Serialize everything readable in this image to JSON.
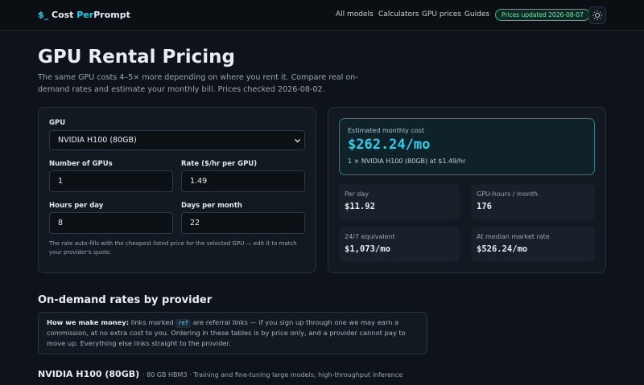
{
  "nav": {
    "logo": {
      "prefix": "$_",
      "word1": "Cost",
      "word2": "Per",
      "word3": "Prompt"
    },
    "links": [
      "All models",
      "Calculators",
      "GPU prices",
      "Guides"
    ],
    "badge": "Prices updated 2026-08-07"
  },
  "header": {
    "title": "GPU Rental Pricing",
    "subtitle": "The same GPU costs 4–5× more depending on where you rent it. Compare real on-demand rates and estimate your monthly bill. Prices checked 2026-08-02."
  },
  "form": {
    "gpu_label": "GPU",
    "gpu_value": "NVIDIA H100 (80GB)",
    "fields": [
      {
        "label": "Number of GPUs",
        "value": "1"
      },
      {
        "label": "Rate ($/hr per GPU)",
        "value": "1.49"
      },
      {
        "label": "Hours per day",
        "value": "8"
      },
      {
        "label": "Days per month",
        "value": "22"
      }
    ],
    "note": "The rate auto-fills with the cheapest listed price for the selected GPU — edit it to match your provider's quote."
  },
  "result": {
    "label": "Estimated monthly cost",
    "value": "$262.24/mo",
    "detail": "1 × NVIDIA H100 (80GB) at $1.49/hr",
    "stats": [
      {
        "label": "Per day",
        "value": "$11.92"
      },
      {
        "label": "GPU-hours / month",
        "value": "176"
      },
      {
        "label": "24/7 equivalent",
        "value": "$1,073/mo"
      },
      {
        "label": "At median market rate",
        "value": "$526.24/mo"
      }
    ]
  },
  "section": {
    "title": "On-demand rates by provider",
    "disclosure": {
      "lead": "How we make money:",
      "text1": "links marked",
      "tag": "ref",
      "text2": "are referral links — if you sign up through one we may earn a commission, at no extra cost to you. Ordering in these tables is by price only, and a provider cannot pay to move up. Everything else links straight to the provider."
    },
    "gpu": {
      "name": "NVIDIA H100 (80GB)",
      "desc": "· 80 GB HBM3 · Training and fine-tuning large models; high-throughput inference"
    }
  }
}
